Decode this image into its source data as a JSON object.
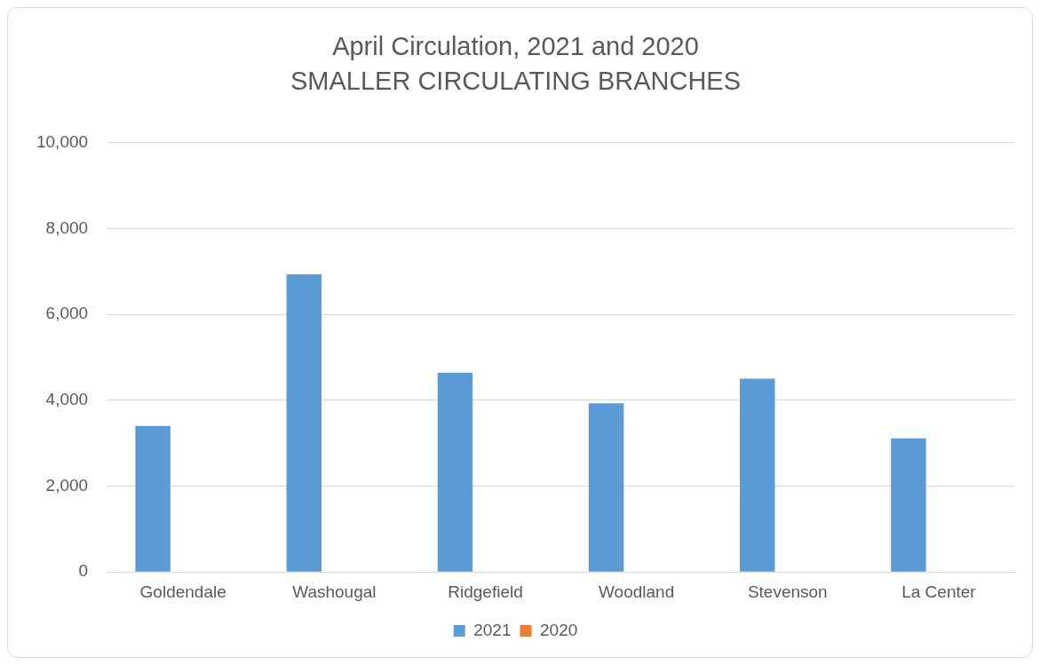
{
  "chart_data": {
    "type": "bar",
    "title": "April Circulation, 2021 and 2020",
    "subtitle": "SMALLER CIRCULATING BRANCHES",
    "categories": [
      "Goldendale",
      "Washougal",
      "Ridgefield",
      "Woodland",
      "Stevenson",
      "La Center"
    ],
    "series": [
      {
        "name": "2021",
        "color": "#5b9bd5",
        "values": [
          3400,
          6930,
          4640,
          3930,
          4500,
          3110
        ]
      },
      {
        "name": "2020",
        "color": "#ed7d31",
        "values": [
          0,
          0,
          0,
          0,
          0,
          0
        ]
      }
    ],
    "ylim": [
      0,
      10000
    ],
    "yticks": [
      {
        "value": 0,
        "label": "0"
      },
      {
        "value": 2000,
        "label": "2,000"
      },
      {
        "value": 4000,
        "label": "4,000"
      },
      {
        "value": 6000,
        "label": "6,000"
      },
      {
        "value": 8000,
        "label": "8,000"
      },
      {
        "value": 10000,
        "label": "10,000"
      }
    ],
    "grid": "y",
    "legend": "bottom"
  }
}
